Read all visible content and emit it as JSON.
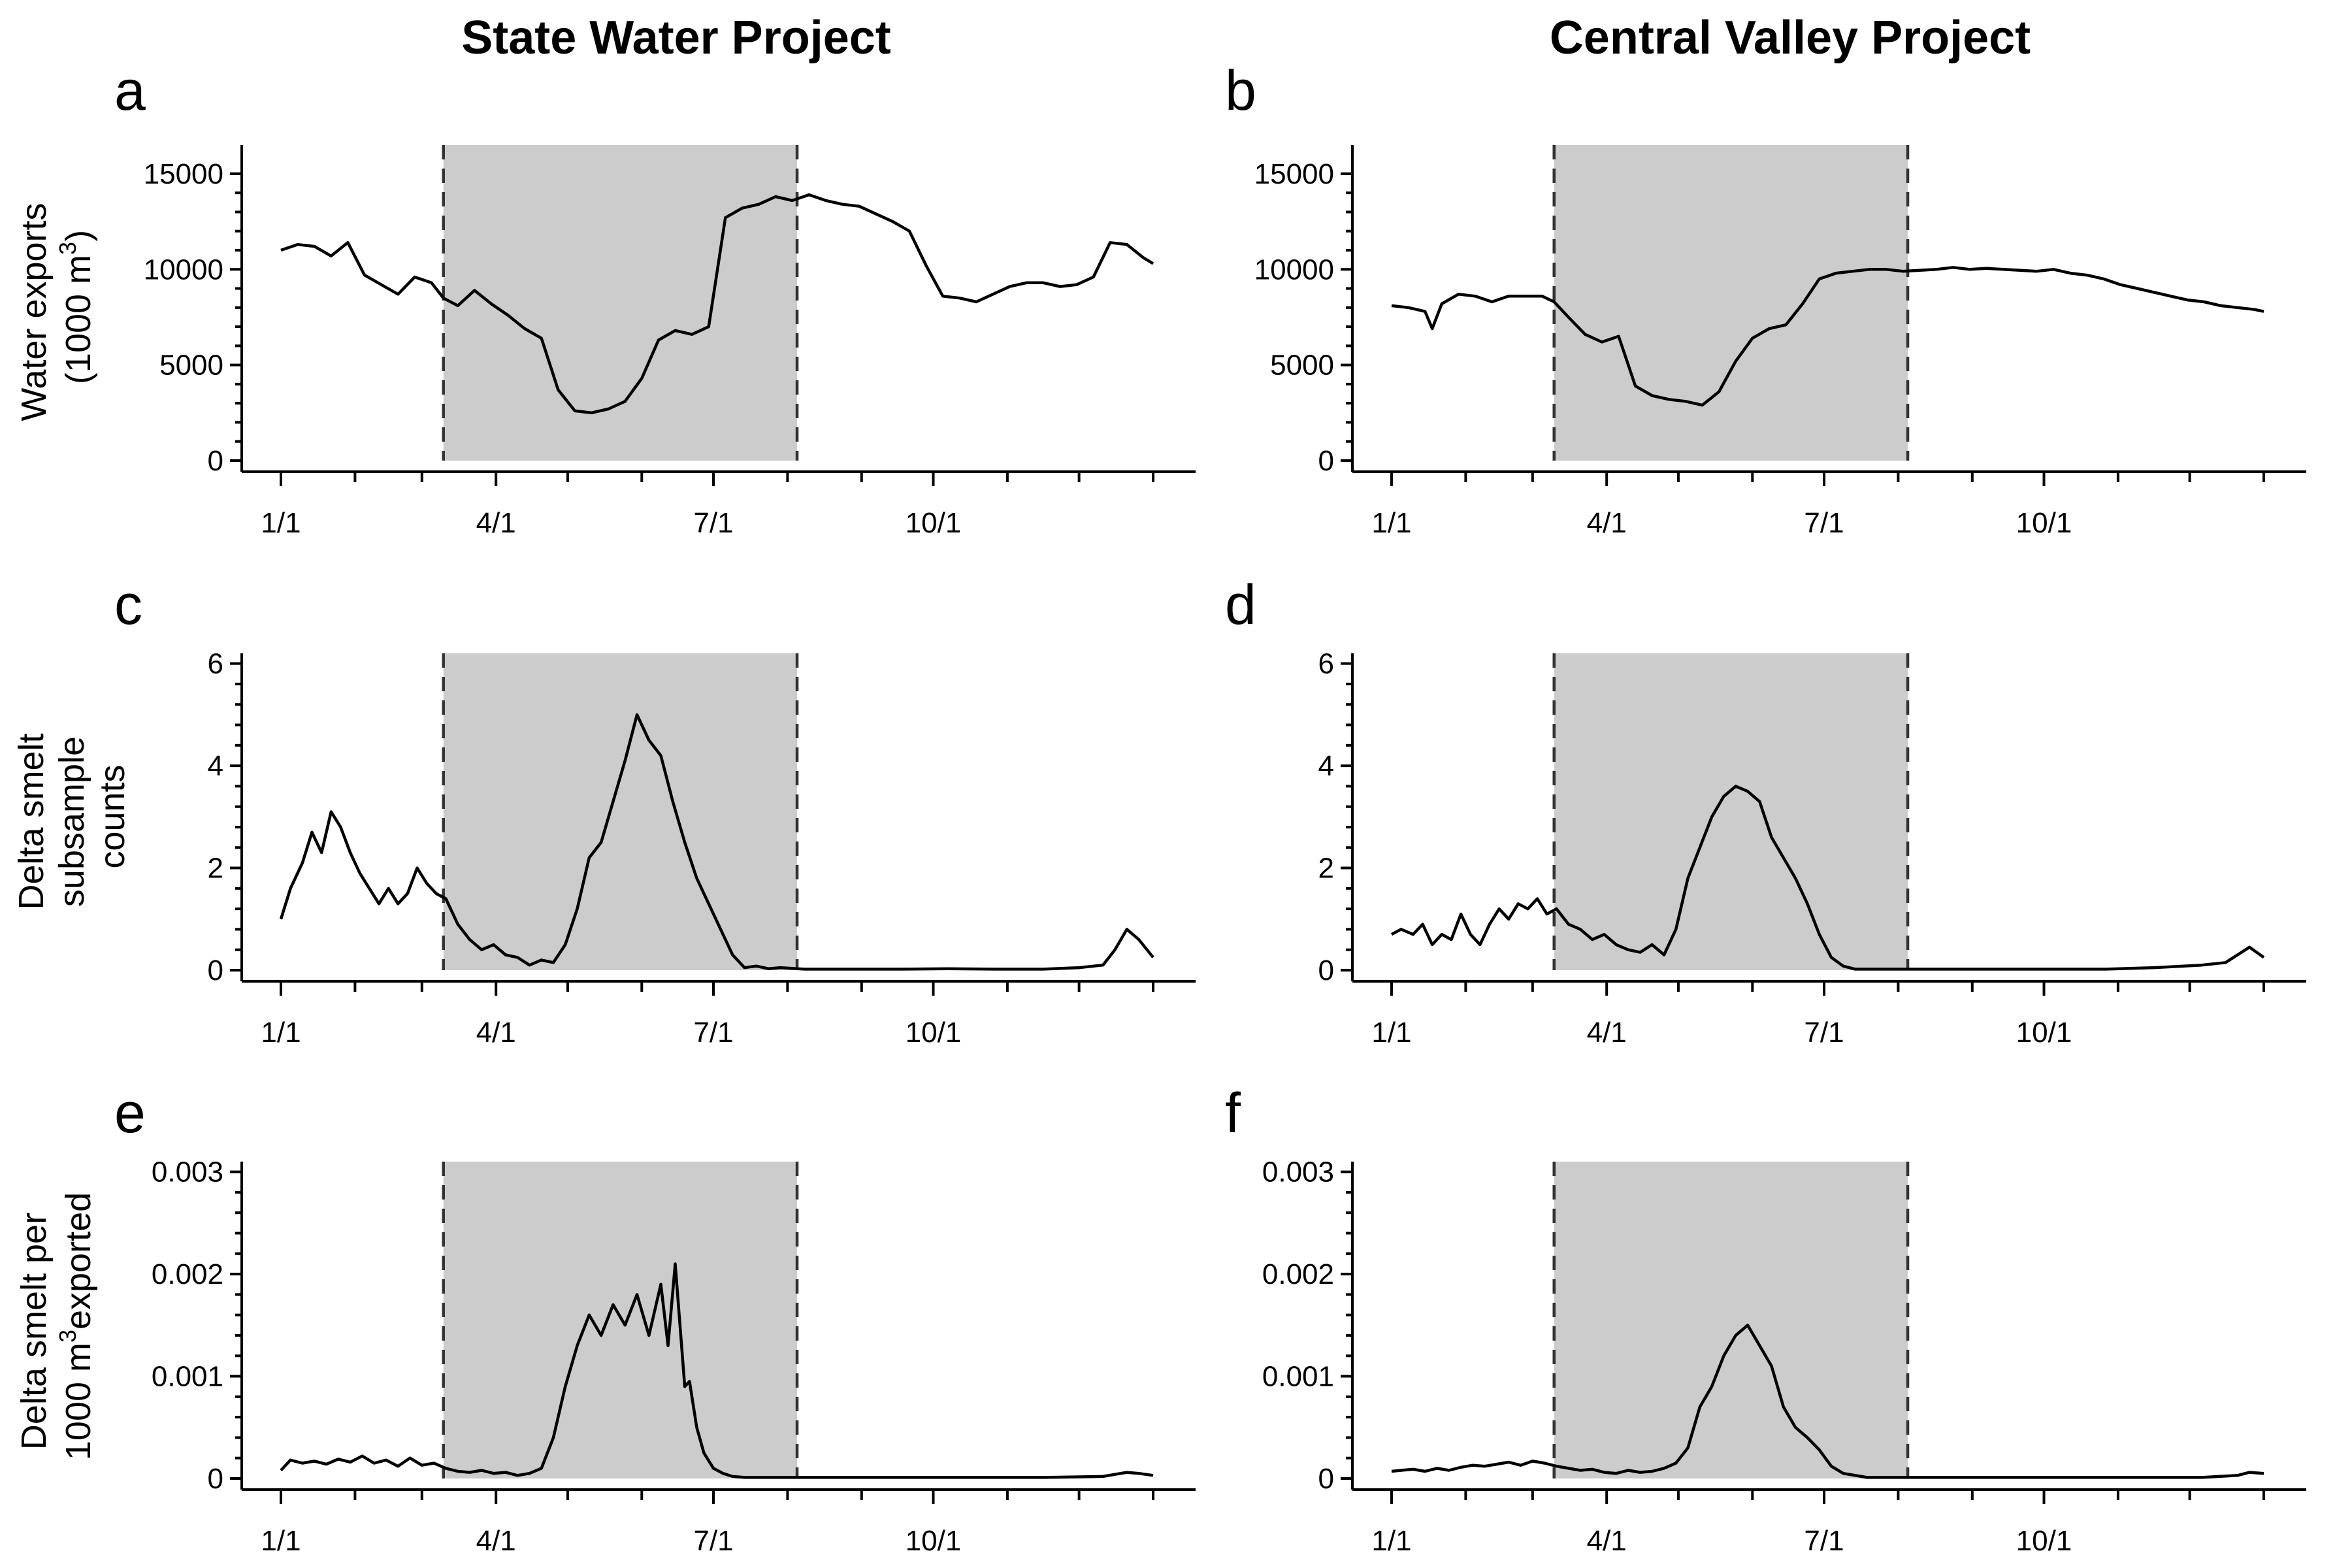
{
  "columns": [
    {
      "title": "State Water Project"
    },
    {
      "title": "Central Valley Project"
    }
  ],
  "rows": [
    {
      "ylabel_lines": [
        "Water exports",
        "(1000 m",
        "3",
        ")"
      ]
    },
    {
      "ylabel_lines": [
        "Delta smelt",
        "subsample",
        "counts"
      ]
    },
    {
      "ylabel_lines": [
        "Delta smelt per",
        "1000 m",
        "3",
        "exported"
      ]
    }
  ],
  "chart_data": [
    {
      "panel": "a",
      "type": "line",
      "col": 0,
      "row": 0,
      "ylim": [
        0,
        16500
      ],
      "yticks": [
        0,
        5000,
        10000,
        15000
      ],
      "ytick_labels": [
        "0",
        "5000",
        "10000",
        "15000"
      ],
      "xlim": [
        1,
        366
      ],
      "xticks": [
        1,
        91,
        182,
        274
      ],
      "xtick_labels": [
        "1/1",
        "4/1",
        "7/1",
        "10/1"
      ],
      "shaded": [
        69,
        217
      ],
      "x": [
        1,
        8,
        15,
        22,
        29,
        36,
        43,
        50,
        57,
        64,
        69,
        75,
        82,
        89,
        96,
        103,
        110,
        117,
        124,
        131,
        138,
        145,
        152,
        159,
        166,
        173,
        180,
        187,
        194,
        201,
        208,
        215,
        222,
        229,
        236,
        243,
        250,
        257,
        264,
        271,
        278,
        285,
        292,
        299,
        306,
        313,
        320,
        327,
        334,
        341,
        348,
        355,
        362,
        366
      ],
      "y": [
        11000,
        11300,
        11200,
        10700,
        11400,
        9700,
        9200,
        8700,
        9600,
        9300,
        8500,
        8100,
        8900,
        8200,
        7600,
        6900,
        6400,
        3700,
        2600,
        2500,
        2700,
        3100,
        4300,
        6300,
        6800,
        6600,
        7000,
        12700,
        13200,
        13400,
        13800,
        13600,
        13900,
        13600,
        13400,
        13300,
        12900,
        12500,
        12000,
        10200,
        8600,
        8500,
        8300,
        8700,
        9100,
        9300,
        9300,
        9100,
        9200,
        9600,
        11400,
        11300,
        10600,
        10300
      ]
    },
    {
      "panel": "b",
      "type": "line",
      "col": 1,
      "row": 0,
      "ylim": [
        0,
        16500
      ],
      "yticks": [
        0,
        5000,
        10000,
        15000
      ],
      "ytick_labels": [
        "0",
        "5000",
        "10000",
        "15000"
      ],
      "xlim": [
        1,
        366
      ],
      "xticks": [
        1,
        91,
        182,
        274
      ],
      "xtick_labels": [
        "1/1",
        "4/1",
        "7/1",
        "10/1"
      ],
      "shaded": [
        69,
        217
      ],
      "x": [
        1,
        8,
        15,
        18,
        22,
        29,
        36,
        43,
        50,
        57,
        64,
        69,
        75,
        82,
        89,
        96,
        103,
        110,
        117,
        124,
        131,
        138,
        145,
        152,
        159,
        166,
        173,
        180,
        187,
        194,
        201,
        208,
        215,
        222,
        229,
        236,
        243,
        250,
        257,
        264,
        271,
        278,
        285,
        292,
        299,
        306,
        313,
        320,
        327,
        334,
        341,
        348,
        355,
        362,
        366
      ],
      "y": [
        8100,
        8000,
        7800,
        6900,
        8200,
        8700,
        8600,
        8300,
        8600,
        8600,
        8600,
        8300,
        7500,
        6600,
        6200,
        6500,
        3900,
        3400,
        3200,
        3100,
        2900,
        3600,
        5200,
        6400,
        6900,
        7100,
        8200,
        9500,
        9800,
        9900,
        10000,
        10000,
        9900,
        9950,
        10000,
        10100,
        10000,
        10050,
        10000,
        9950,
        9900,
        10000,
        9800,
        9700,
        9500,
        9200,
        9000,
        8800,
        8600,
        8400,
        8300,
        8100,
        8000,
        7900,
        7800
      ]
    },
    {
      "panel": "c",
      "type": "line",
      "col": 0,
      "row": 1,
      "ylim": [
        0,
        6.2
      ],
      "yticks": [
        0,
        2,
        4,
        6
      ],
      "ytick_labels": [
        "0",
        "2",
        "4",
        "6"
      ],
      "xlim": [
        1,
        366
      ],
      "xticks": [
        1,
        91,
        182,
        274
      ],
      "xtick_labels": [
        "1/1",
        "4/1",
        "7/1",
        "10/1"
      ],
      "shaded": [
        69,
        217
      ],
      "x": [
        1,
        5,
        10,
        14,
        18,
        22,
        26,
        30,
        34,
        38,
        42,
        46,
        50,
        54,
        58,
        62,
        66,
        70,
        75,
        80,
        85,
        90,
        95,
        100,
        105,
        110,
        115,
        120,
        125,
        130,
        135,
        140,
        145,
        150,
        155,
        160,
        165,
        170,
        175,
        180,
        185,
        190,
        195,
        200,
        205,
        210,
        220,
        240,
        260,
        280,
        300,
        320,
        335,
        345,
        350,
        355,
        360,
        366
      ],
      "y": [
        1.0,
        1.6,
        2.1,
        2.7,
        2.3,
        3.1,
        2.8,
        2.3,
        1.9,
        1.6,
        1.3,
        1.6,
        1.3,
        1.5,
        2.0,
        1.7,
        1.5,
        1.4,
        0.9,
        0.6,
        0.4,
        0.5,
        0.3,
        0.25,
        0.1,
        0.2,
        0.15,
        0.5,
        1.2,
        2.2,
        2.5,
        3.3,
        4.1,
        5.0,
        4.5,
        4.2,
        3.3,
        2.5,
        1.8,
        1.3,
        0.8,
        0.3,
        0.05,
        0.08,
        0.03,
        0.05,
        0.02,
        0.02,
        0.02,
        0.03,
        0.02,
        0.02,
        0.05,
        0.1,
        0.4,
        0.8,
        0.6,
        0.25
      ]
    },
    {
      "panel": "d",
      "type": "line",
      "col": 1,
      "row": 1,
      "ylim": [
        0,
        6.2
      ],
      "yticks": [
        0,
        2,
        4,
        6
      ],
      "ytick_labels": [
        "0",
        "2",
        "4",
        "6"
      ],
      "xlim": [
        1,
        366
      ],
      "xticks": [
        1,
        91,
        182,
        274
      ],
      "xtick_labels": [
        "1/1",
        "4/1",
        "7/1",
        "10/1"
      ],
      "shaded": [
        69,
        217
      ],
      "x": [
        1,
        5,
        10,
        14,
        18,
        22,
        26,
        30,
        34,
        38,
        42,
        46,
        50,
        54,
        58,
        62,
        66,
        70,
        75,
        80,
        85,
        90,
        95,
        100,
        105,
        110,
        115,
        120,
        125,
        130,
        135,
        140,
        145,
        150,
        155,
        160,
        165,
        170,
        175,
        180,
        185,
        190,
        195,
        200,
        205,
        210,
        220,
        240,
        260,
        280,
        300,
        320,
        340,
        350,
        355,
        360,
        366
      ],
      "y": [
        0.7,
        0.8,
        0.7,
        0.9,
        0.5,
        0.7,
        0.6,
        1.1,
        0.7,
        0.5,
        0.9,
        1.2,
        1.0,
        1.3,
        1.2,
        1.4,
        1.1,
        1.2,
        0.9,
        0.8,
        0.6,
        0.7,
        0.5,
        0.4,
        0.35,
        0.5,
        0.3,
        0.8,
        1.8,
        2.4,
        3.0,
        3.4,
        3.6,
        3.5,
        3.3,
        2.6,
        2.2,
        1.8,
        1.3,
        0.7,
        0.25,
        0.08,
        0.02,
        0.02,
        0.02,
        0.02,
        0.02,
        0.02,
        0.02,
        0.02,
        0.02,
        0.05,
        0.1,
        0.15,
        0.3,
        0.45,
        0.25
      ]
    },
    {
      "panel": "e",
      "type": "line",
      "col": 0,
      "row": 2,
      "ylim": [
        0,
        0.0031
      ],
      "yticks": [
        0,
        0.001,
        0.002,
        0.003
      ],
      "ytick_labels": [
        "0",
        "0.001",
        "0.002",
        "0.003"
      ],
      "xlim": [
        1,
        366
      ],
      "xticks": [
        1,
        91,
        182,
        274
      ],
      "xtick_labels": [
        "1/1",
        "4/1",
        "7/1",
        "10/1"
      ],
      "shaded": [
        69,
        217
      ],
      "x": [
        1,
        5,
        10,
        15,
        20,
        25,
        30,
        35,
        40,
        45,
        50,
        55,
        60,
        65,
        70,
        75,
        80,
        85,
        90,
        95,
        100,
        105,
        110,
        115,
        120,
        125,
        130,
        135,
        140,
        145,
        150,
        155,
        160,
        163,
        166,
        170,
        172,
        175,
        178,
        182,
        186,
        190,
        195,
        200,
        210,
        230,
        260,
        290,
        320,
        345,
        350,
        355,
        360,
        366
      ],
      "y": [
        8e-05,
        0.00018,
        0.00015,
        0.00017,
        0.00014,
        0.00019,
        0.00016,
        0.00022,
        0.00015,
        0.00018,
        0.00012,
        0.0002,
        0.00013,
        0.00015,
        0.0001,
        7e-05,
        6e-05,
        8e-05,
        5e-05,
        6e-05,
        3e-05,
        5e-05,
        0.0001,
        0.0004,
        0.0009,
        0.0013,
        0.0016,
        0.0014,
        0.0017,
        0.0015,
        0.0018,
        0.0014,
        0.0019,
        0.0013,
        0.0021,
        0.0009,
        0.00095,
        0.0005,
        0.00025,
        0.0001,
        5e-05,
        2e-05,
        1e-05,
        1e-05,
        1e-05,
        1e-05,
        1e-05,
        1e-05,
        1e-05,
        2e-05,
        4e-05,
        6e-05,
        5e-05,
        3e-05
      ]
    },
    {
      "panel": "f",
      "type": "line",
      "col": 1,
      "row": 2,
      "ylim": [
        0,
        0.0031
      ],
      "yticks": [
        0,
        0.001,
        0.002,
        0.003
      ],
      "ytick_labels": [
        "0",
        "0.001",
        "0.002",
        "0.003"
      ],
      "xlim": [
        1,
        366
      ],
      "xticks": [
        1,
        91,
        182,
        274
      ],
      "xtick_labels": [
        "1/1",
        "4/1",
        "7/1",
        "10/1"
      ],
      "shaded": [
        69,
        217
      ],
      "x": [
        1,
        5,
        10,
        15,
        20,
        25,
        30,
        35,
        40,
        45,
        50,
        55,
        60,
        65,
        70,
        75,
        80,
        85,
        90,
        95,
        100,
        105,
        110,
        115,
        120,
        125,
        130,
        135,
        140,
        145,
        150,
        155,
        160,
        165,
        170,
        175,
        180,
        185,
        190,
        200,
        220,
        250,
        280,
        310,
        340,
        355,
        360,
        366
      ],
      "y": [
        7e-05,
        8e-05,
        9e-05,
        7e-05,
        0.0001,
        8e-05,
        0.00011,
        0.00013,
        0.00012,
        0.00014,
        0.00016,
        0.00013,
        0.00017,
        0.00015,
        0.00012,
        0.0001,
        8e-05,
        9e-05,
        6e-05,
        5e-05,
        8e-05,
        6e-05,
        7e-05,
        0.0001,
        0.00015,
        0.0003,
        0.0007,
        0.0009,
        0.0012,
        0.0014,
        0.0015,
        0.0013,
        0.0011,
        0.0007,
        0.0005,
        0.0004,
        0.00028,
        0.00012,
        5e-05,
        1e-05,
        1e-05,
        1e-05,
        1e-05,
        1e-05,
        1e-05,
        3e-05,
        6e-05,
        5e-05
      ]
    }
  ]
}
